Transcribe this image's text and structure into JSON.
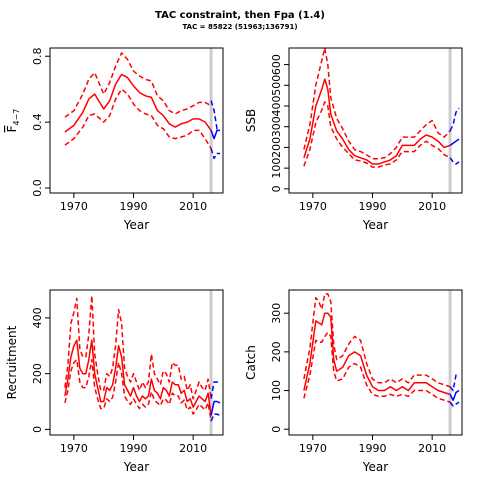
{
  "title": "TAC constraint, then Fpa (1.4)",
  "subtitle": "TAC = 85822 (51963;136791)",
  "colors": {
    "history": "#ff0000",
    "projection": "#0000ff",
    "ref_line": "#cccccc"
  },
  "chart_data": [
    {
      "type": "line",
      "panel": "fbar",
      "xlabel": "Year",
      "ylabel": "F̅4−7",
      "ylabel_main": "F",
      "ylabel_sub": "4−7",
      "xlim": [
        1962,
        2020
      ],
      "ylim": [
        -0.03,
        0.85
      ],
      "xticks": [
        1970,
        1990,
        2010
      ],
      "yticks": [
        0.0,
        0.4,
        0.8
      ],
      "ytick_labels": [
        "0.0",
        "0.4",
        "0.8"
      ],
      "ref_year": 2016,
      "history_x": [
        1967,
        1970,
        1973,
        1975,
        1977,
        1980,
        1982,
        1984,
        1986,
        1988,
        1990,
        1992,
        1994,
        1996,
        1998,
        2000,
        2002,
        2004,
        2006,
        2008,
        2010,
        2012,
        2014,
        2016
      ],
      "history_mean": [
        0.34,
        0.38,
        0.46,
        0.54,
        0.57,
        0.48,
        0.53,
        0.63,
        0.69,
        0.67,
        0.62,
        0.58,
        0.56,
        0.55,
        0.47,
        0.44,
        0.39,
        0.37,
        0.39,
        0.4,
        0.42,
        0.42,
        0.4,
        0.35
      ],
      "history_lower": [
        0.26,
        0.3,
        0.37,
        0.44,
        0.45,
        0.4,
        0.44,
        0.54,
        0.6,
        0.57,
        0.51,
        0.47,
        0.45,
        0.44,
        0.38,
        0.36,
        0.31,
        0.3,
        0.31,
        0.32,
        0.35,
        0.35,
        0.3,
        0.24
      ],
      "history_upper": [
        0.43,
        0.47,
        0.57,
        0.66,
        0.7,
        0.57,
        0.64,
        0.74,
        0.82,
        0.78,
        0.71,
        0.68,
        0.66,
        0.65,
        0.56,
        0.53,
        0.47,
        0.45,
        0.47,
        0.48,
        0.5,
        0.52,
        0.52,
        0.5
      ],
      "proj_x": [
        2016,
        2017,
        2018,
        2019
      ],
      "proj_mean": [
        0.35,
        0.3,
        0.35,
        0.35
      ],
      "proj_lower": [
        0.24,
        0.18,
        0.21,
        0.21
      ],
      "proj_upper": [
        0.53,
        0.47,
        0.36,
        0.36
      ]
    },
    {
      "type": "line",
      "panel": "ssb",
      "xlabel": "Year",
      "ylabel": "SSB",
      "xlim": [
        1962,
        2020
      ],
      "ylim": [
        -20,
        680
      ],
      "xticks": [
        1970,
        1990,
        2010
      ],
      "yticks": [
        0,
        100,
        200,
        300,
        400,
        500,
        600
      ],
      "ytick_labels": [
        "0",
        "100",
        "200",
        "300",
        "400",
        "500",
        "600"
      ],
      "ref_year": 2016,
      "history_x": [
        1967,
        1969,
        1971,
        1973,
        1974,
        1975,
        1976,
        1978,
        1980,
        1982,
        1984,
        1986,
        1988,
        1990,
        1992,
        1994,
        1996,
        1998,
        2000,
        2002,
        2004,
        2006,
        2008,
        2010,
        2012,
        2014,
        2016
      ],
      "history_mean": [
        150,
        240,
        400,
        480,
        530,
        480,
        360,
        280,
        240,
        190,
        160,
        150,
        140,
        120,
        120,
        130,
        140,
        160,
        210,
        210,
        210,
        240,
        260,
        250,
        230,
        200,
        210
      ],
      "history_lower": [
        110,
        190,
        320,
        380,
        420,
        400,
        300,
        240,
        200,
        170,
        140,
        135,
        125,
        105,
        105,
        115,
        120,
        140,
        180,
        180,
        180,
        210,
        230,
        210,
        195,
        165,
        150
      ],
      "history_upper": [
        190,
        310,
        500,
        620,
        680,
        600,
        440,
        340,
        290,
        230,
        190,
        180,
        165,
        145,
        145,
        150,
        170,
        200,
        250,
        250,
        250,
        280,
        310,
        330,
        270,
        250,
        280
      ],
      "proj_x": [
        2016,
        2017,
        2018,
        2019
      ],
      "proj_mean": [
        210,
        220,
        230,
        240
      ],
      "proj_lower": [
        150,
        130,
        120,
        130
      ],
      "proj_upper": [
        280,
        310,
        370,
        390
      ]
    },
    {
      "type": "line",
      "panel": "recruitment",
      "xlabel": "Year",
      "ylabel": "Recruitment",
      "xlim": [
        1962,
        2020
      ],
      "ylim": [
        -20,
        500
      ],
      "xticks": [
        1970,
        1990,
        2010
      ],
      "yticks": [
        0,
        200,
        400
      ],
      "ytick_labels": [
        "0",
        "200",
        "400"
      ],
      "ref_year": 2016,
      "history_x": [
        1967,
        1968,
        1969,
        1970,
        1971,
        1972,
        1973,
        1974,
        1975,
        1976,
        1977,
        1978,
        1979,
        1980,
        1981,
        1982,
        1983,
        1984,
        1985,
        1986,
        1987,
        1988,
        1989,
        1990,
        1991,
        1992,
        1993,
        1994,
        1995,
        1996,
        1997,
        1998,
        1999,
        2000,
        2001,
        2002,
        2003,
        2004,
        2005,
        2006,
        2007,
        2008,
        2009,
        2010,
        2011,
        2012,
        2013,
        2014,
        2015,
        2016
      ],
      "history_mean": [
        120,
        180,
        260,
        300,
        320,
        220,
        200,
        200,
        250,
        320,
        200,
        150,
        100,
        100,
        150,
        140,
        160,
        220,
        300,
        260,
        160,
        140,
        120,
        150,
        120,
        100,
        120,
        110,
        120,
        180,
        140,
        130,
        110,
        150,
        140,
        120,
        170,
        160,
        160,
        130,
        140,
        100,
        110,
        80,
        100,
        120,
        110,
        100,
        130,
        50
      ],
      "history_lower": [
        95,
        140,
        210,
        240,
        250,
        170,
        150,
        150,
        190,
        250,
        150,
        110,
        75,
        75,
        110,
        100,
        115,
        170,
        240,
        200,
        120,
        100,
        90,
        110,
        90,
        75,
        90,
        80,
        90,
        135,
        105,
        95,
        85,
        110,
        105,
        90,
        130,
        120,
        120,
        95,
        105,
        70,
        80,
        55,
        70,
        90,
        80,
        70,
        95,
        30
      ],
      "history_upper": [
        150,
        230,
        380,
        420,
        470,
        290,
        260,
        260,
        340,
        480,
        270,
        200,
        140,
        140,
        200,
        190,
        220,
        300,
        430,
        380,
        220,
        190,
        170,
        200,
        170,
        140,
        170,
        150,
        170,
        270,
        200,
        180,
        160,
        210,
        200,
        170,
        240,
        230,
        230,
        180,
        190,
        140,
        160,
        110,
        140,
        170,
        150,
        140,
        180,
        110
      ],
      "proj_x": [
        2016,
        2017,
        2018,
        2019
      ],
      "proj_mean": [
        50,
        100,
        100,
        95
      ],
      "proj_lower": [
        30,
        55,
        55,
        50
      ],
      "proj_upper": [
        110,
        170,
        170,
        165
      ]
    },
    {
      "type": "line",
      "panel": "catch",
      "xlabel": "Year",
      "ylabel": "Catch",
      "xlim": [
        1962,
        2020
      ],
      "ylim": [
        -15,
        360
      ],
      "xticks": [
        1970,
        1990,
        2010
      ],
      "yticks": [
        0,
        100,
        200,
        300
      ],
      "ytick_labels": [
        "0",
        "100",
        "200",
        "300"
      ],
      "ref_year": 2016,
      "history_x": [
        1967,
        1969,
        1971,
        1972,
        1973,
        1974,
        1975,
        1976,
        1977,
        1978,
        1980,
        1982,
        1984,
        1986,
        1988,
        1990,
        1992,
        1994,
        1996,
        1998,
        2000,
        2002,
        2004,
        2006,
        2008,
        2010,
        2012,
        2014,
        2016
      ],
      "history_mean": [
        100,
        170,
        280,
        275,
        270,
        300,
        300,
        290,
        180,
        150,
        160,
        190,
        200,
        190,
        140,
        110,
        100,
        100,
        110,
        100,
        110,
        100,
        120,
        120,
        120,
        110,
        100,
        95,
        90
      ],
      "history_lower": [
        80,
        140,
        230,
        225,
        225,
        240,
        250,
        240,
        150,
        125,
        130,
        160,
        170,
        160,
        115,
        90,
        85,
        85,
        90,
        85,
        90,
        85,
        100,
        100,
        100,
        90,
        80,
        75,
        70
      ],
      "history_upper": [
        130,
        210,
        340,
        330,
        310,
        350,
        350,
        330,
        220,
        180,
        190,
        220,
        240,
        230,
        170,
        130,
        120,
        120,
        130,
        120,
        130,
        120,
        140,
        140,
        140,
        130,
        120,
        115,
        110
      ],
      "proj_x": [
        2016,
        2017,
        2018,
        2019
      ],
      "proj_mean": [
        90,
        75,
        95,
        100
      ],
      "proj_lower": [
        70,
        60,
        65,
        70
      ],
      "proj_upper": [
        110,
        100,
        140,
        140
      ]
    }
  ]
}
